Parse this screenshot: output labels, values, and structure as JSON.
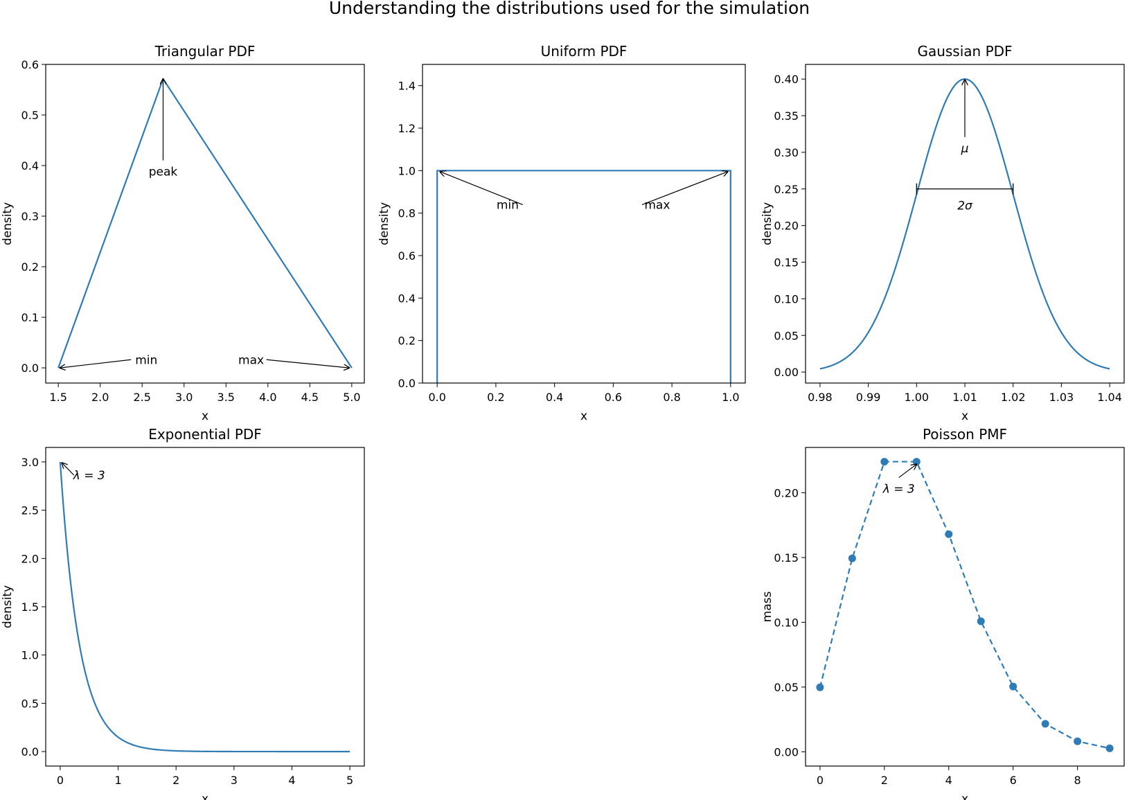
{
  "figure": {
    "suptitle": "Understanding the distributions used for the simulation",
    "line_color": "#2e7bb6",
    "axis_color": "#000000"
  },
  "chart_data": [
    {
      "type": "line",
      "title": "Triangular PDF",
      "xlabel": "x",
      "ylabel": "density",
      "xlim": [
        1.35,
        5.15
      ],
      "ylim": [
        -0.03,
        0.6
      ],
      "xticks": [
        1.5,
        2.0,
        2.5,
        3.0,
        3.5,
        4.0,
        4.5,
        5.0
      ],
      "xtick_labels": [
        "1.5",
        "2.0",
        "2.5",
        "3.0",
        "3.5",
        "4.0",
        "4.5",
        "5.0"
      ],
      "yticks": [
        0.0,
        0.1,
        0.2,
        0.3,
        0.4,
        0.5,
        0.6
      ],
      "ytick_labels": [
        "0.0",
        "0.1",
        "0.2",
        "0.3",
        "0.4",
        "0.5",
        "0.6"
      ],
      "series": [
        {
          "x": [
            1.5,
            2.75,
            5.0
          ],
          "y": [
            0.0,
            0.5714,
            0.0
          ],
          "style": "solid",
          "markers": false
        }
      ],
      "annotations": [
        {
          "text": "peak",
          "text_x": 2.75,
          "text_y": 0.38,
          "arrow_x": 2.75,
          "arrow_y": 0.5714,
          "arrow": true
        },
        {
          "text": "min",
          "text_x": 2.55,
          "text_y": 0.008,
          "arrow_x": 1.52,
          "arrow_y": 0.0,
          "arrow": true,
          "side": "left"
        },
        {
          "text": "max",
          "text_x": 3.8,
          "text_y": 0.008,
          "arrow_x": 4.97,
          "arrow_y": 0.0,
          "arrow": true,
          "side": "right"
        }
      ]
    },
    {
      "type": "line",
      "title": "Uniform PDF",
      "xlabel": "x",
      "ylabel": "density",
      "xlim": [
        -0.05,
        1.05
      ],
      "ylim": [
        0.0,
        1.5
      ],
      "xticks": [
        0.0,
        0.2,
        0.4,
        0.6,
        0.8,
        1.0
      ],
      "xtick_labels": [
        "0.0",
        "0.2",
        "0.4",
        "0.6",
        "0.8",
        "1.0"
      ],
      "yticks": [
        0.0,
        0.2,
        0.4,
        0.6,
        0.8,
        1.0,
        1.2,
        1.4
      ],
      "ytick_labels": [
        "0.0",
        "0.2",
        "0.4",
        "0.6",
        "0.8",
        "1.0",
        "1.2",
        "1.4"
      ],
      "series": [
        {
          "x": [
            0.0,
            0.0,
            1.0,
            1.0
          ],
          "y": [
            0.0,
            1.0,
            1.0,
            0.0
          ],
          "style": "solid",
          "markers": false
        }
      ],
      "annotations": [
        {
          "text": "min",
          "text_x": 0.24,
          "text_y": 0.82,
          "arrow_x": 0.01,
          "arrow_y": 0.995,
          "arrow": true,
          "side": "right"
        },
        {
          "text": "max",
          "text_x": 0.75,
          "text_y": 0.82,
          "arrow_x": 0.99,
          "arrow_y": 0.995,
          "arrow": true,
          "side": "left"
        }
      ]
    },
    {
      "type": "line",
      "title": "Gaussian PDF",
      "xlabel": "x",
      "ylabel": "density",
      "xlim": [
        0.977,
        1.043
      ],
      "ylim": [
        -0.015,
        0.42
      ],
      "xticks": [
        0.98,
        0.99,
        1.0,
        1.01,
        1.02,
        1.03,
        1.04
      ],
      "xtick_labels": [
        "0.98",
        "0.99",
        "1.00",
        "1.01",
        "1.02",
        "1.03",
        "1.04"
      ],
      "yticks": [
        0.0,
        0.05,
        0.1,
        0.15,
        0.2,
        0.25,
        0.3,
        0.35,
        0.4
      ],
      "ytick_labels": [
        "0.00",
        "0.05",
        "0.10",
        "0.15",
        "0.20",
        "0.25",
        "0.30",
        "0.35",
        "0.40"
      ],
      "series": [
        {
          "function": "gaussian",
          "mu": 1.01,
          "sigma": 0.01,
          "x_range": [
            0.98,
            1.04
          ],
          "peak": 0.4,
          "style": "solid",
          "markers": false
        }
      ],
      "annotations": [
        {
          "text": "μ",
          "text_x": 1.01,
          "text_y": 0.3,
          "arrow_x": 1.01,
          "arrow_y": 0.399,
          "arrow": true
        },
        {
          "text": "2σ",
          "text_x": 1.01,
          "text_y": 0.222,
          "bracket_x": [
            1.0,
            1.02
          ],
          "bracket_y": 0.25,
          "arrow": false
        }
      ]
    },
    {
      "type": "line",
      "title": "Exponential PDF",
      "xlabel": "x",
      "ylabel": "density",
      "xlim": [
        -0.25,
        5.25
      ],
      "ylim": [
        -0.15,
        3.15
      ],
      "xticks": [
        0,
        1,
        2,
        3,
        4,
        5
      ],
      "xtick_labels": [
        "0",
        "1",
        "2",
        "3",
        "4",
        "5"
      ],
      "yticks": [
        0.0,
        0.5,
        1.0,
        1.5,
        2.0,
        2.5,
        3.0
      ],
      "ytick_labels": [
        "0.0",
        "0.5",
        "1.0",
        "1.5",
        "2.0",
        "2.5",
        "3.0"
      ],
      "series": [
        {
          "function": "exponential",
          "lambda": 3,
          "x_range": [
            0,
            5
          ],
          "style": "solid",
          "markers": false
        }
      ],
      "annotations": [
        {
          "text": "λ = 3",
          "text_x": 0.5,
          "text_y": 2.82,
          "arrow_x": 0.03,
          "arrow_y": 2.99,
          "arrow": true,
          "side": "left"
        }
      ]
    },
    {
      "type": "line",
      "title": "Poisson PMF",
      "xlabel": "x",
      "ylabel": "mass",
      "xlim": [
        -0.45,
        9.45
      ],
      "ylim": [
        -0.011,
        0.235
      ],
      "xticks": [
        0,
        2,
        4,
        6,
        8
      ],
      "xtick_labels": [
        "0",
        "2",
        "4",
        "6",
        "8"
      ],
      "yticks": [
        0.0,
        0.05,
        0.1,
        0.15,
        0.2
      ],
      "ytick_labels": [
        "0.00",
        "0.05",
        "0.10",
        "0.15",
        "0.20"
      ],
      "series": [
        {
          "x": [
            0,
            1,
            2,
            3,
            4,
            5,
            6,
            7,
            8,
            9
          ],
          "y": [
            0.0498,
            0.1494,
            0.224,
            0.224,
            0.168,
            0.1008,
            0.0504,
            0.0216,
            0.0081,
            0.0027
          ],
          "style": "dashed",
          "markers": true
        }
      ],
      "annotations": [
        {
          "text": "λ = 3",
          "text_x": 2.45,
          "text_y": 0.2,
          "arrow_x": 3.0,
          "arrow_y": 0.222,
          "arrow": true
        }
      ]
    }
  ]
}
